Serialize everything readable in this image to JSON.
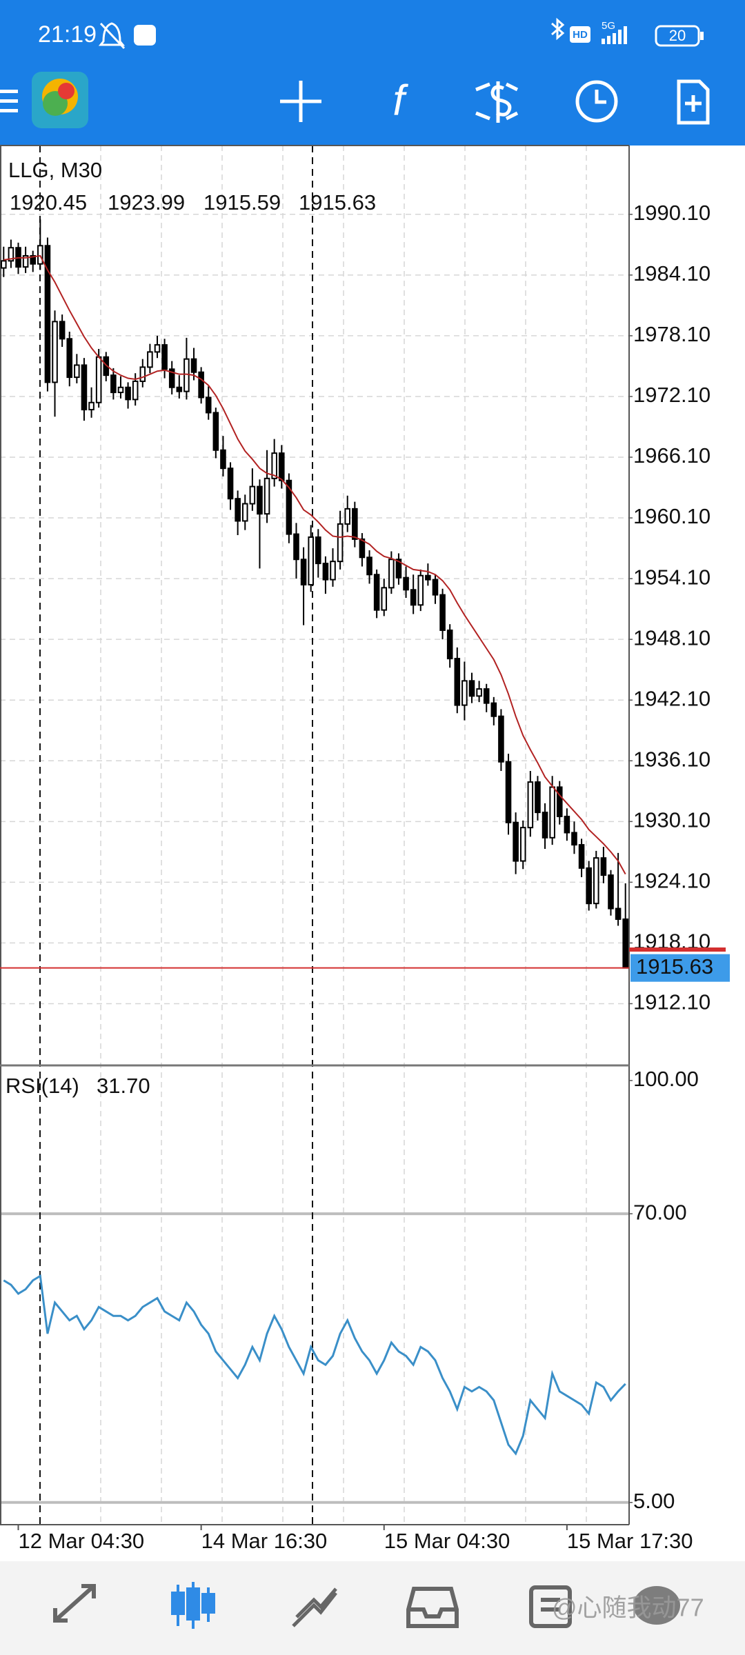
{
  "status_bar": {
    "time": "21:19",
    "hd": "HD",
    "network": "5G",
    "battery": "20"
  },
  "chart_data": [
    {
      "type": "candlestick",
      "title": "LLG, M30",
      "open": [
        1984.8,
        1985.5,
        1986.8,
        1984.9,
        1986.0,
        1985.2,
        1987.0,
        1973.5,
        1979.5,
        1977.8,
        1974.0,
        1975.2,
        1970.8,
        1971.5,
        1976.0,
        1974.2,
        1972.5,
        1973.0,
        1971.8,
        1973.6,
        1975.0,
        1976.5,
        1977.2,
        1974.8,
        1973.0,
        1972.6,
        1975.8,
        1974.5,
        1972.0,
        1970.5,
        1966.8,
        1965.0,
        1962.0,
        1959.8,
        1961.5,
        1963.2,
        1960.5,
        1964.0,
        1966.5,
        1963.8,
        1958.5,
        1956.0,
        1953.5,
        1958.2,
        1955.6,
        1954.0,
        1955.8,
        1959.5,
        1961.0,
        1958.0,
        1956.2,
        1954.5,
        1951.0,
        1953.2,
        1956.0,
        1954.2,
        1953.0,
        1951.5,
        1954.4,
        1954.0,
        1952.5,
        1949.0,
        1946.2,
        1941.6,
        1944.0,
        1942.5,
        1943.2,
        1941.8,
        1940.5,
        1936.0,
        1930.0,
        1926.2,
        1929.5,
        1934.0,
        1931.0,
        1928.5,
        1933.5,
        1930.6,
        1929.0,
        1927.8,
        1925.5,
        1922.0,
        1926.5,
        1924.8,
        1921.5,
        1920.45
      ],
      "high": [
        1986.9,
        1987.6,
        1987.3,
        1986.9,
        1986.5,
        1989.6,
        1987.8,
        1980.6,
        1980.2,
        1978.5,
        1976.3,
        1975.9,
        1973.0,
        1976.8,
        1976.5,
        1974.9,
        1974.1,
        1973.5,
        1974.4,
        1975.8,
        1977.3,
        1978.1,
        1977.8,
        1975.6,
        1974.2,
        1977.9,
        1976.9,
        1975.0,
        1973.1,
        1971.0,
        1968.2,
        1965.6,
        1962.8,
        1962.4,
        1965.0,
        1963.9,
        1966.8,
        1967.9,
        1967.3,
        1964.5,
        1959.6,
        1957.2,
        1959.4,
        1959.0,
        1956.3,
        1957.1,
        1960.8,
        1962.3,
        1961.7,
        1958.6,
        1956.9,
        1955.0,
        1954.1,
        1956.8,
        1956.6,
        1955.3,
        1954.5,
        1955.0,
        1955.6,
        1954.5,
        1953.1,
        1949.6,
        1947.3,
        1945.9,
        1944.8,
        1944.0,
        1943.7,
        1942.4,
        1941.2,
        1936.8,
        1931.0,
        1930.2,
        1935.1,
        1934.6,
        1931.9,
        1934.6,
        1934.1,
        1931.4,
        1930.1,
        1928.4,
        1926.2,
        1927.2,
        1927.6,
        1925.3,
        1927.0,
        1923.99
      ],
      "low": [
        1983.9,
        1984.8,
        1984.2,
        1984.3,
        1984.4,
        1984.6,
        1972.6,
        1970.1,
        1977.0,
        1973.1,
        1973.4,
        1969.7,
        1970.0,
        1971.0,
        1973.6,
        1971.8,
        1971.9,
        1970.9,
        1971.2,
        1973.0,
        1974.4,
        1975.9,
        1973.9,
        1972.3,
        1971.9,
        1971.8,
        1973.7,
        1971.4,
        1969.8,
        1966.0,
        1964.2,
        1960.9,
        1958.4,
        1958.9,
        1960.8,
        1955.1,
        1959.6,
        1963.2,
        1963.0,
        1957.6,
        1954.1,
        1949.5,
        1952.8,
        1954.2,
        1952.6,
        1953.3,
        1955.0,
        1958.7,
        1957.2,
        1955.3,
        1953.6,
        1950.2,
        1950.4,
        1952.6,
        1953.5,
        1952.2,
        1950.6,
        1950.9,
        1953.4,
        1951.6,
        1948.1,
        1945.3,
        1940.8,
        1940.1,
        1941.8,
        1941.9,
        1940.9,
        1939.6,
        1935.1,
        1928.8,
        1924.9,
        1925.4,
        1928.6,
        1930.2,
        1927.4,
        1927.8,
        1929.8,
        1928.2,
        1926.9,
        1924.6,
        1921.3,
        1921.5,
        1924.0,
        1920.8,
        1919.8,
        1915.59
      ],
      "close": [
        1985.5,
        1986.8,
        1984.9,
        1986.0,
        1985.2,
        1987.0,
        1973.5,
        1979.5,
        1977.8,
        1974.0,
        1975.2,
        1970.8,
        1971.5,
        1976.0,
        1974.2,
        1972.5,
        1973.0,
        1971.8,
        1973.6,
        1975.0,
        1976.5,
        1977.2,
        1974.8,
        1973.0,
        1972.6,
        1975.8,
        1974.5,
        1972.0,
        1970.5,
        1966.8,
        1965.0,
        1962.0,
        1959.8,
        1961.5,
        1963.2,
        1960.5,
        1964.0,
        1966.5,
        1963.8,
        1958.5,
        1956.0,
        1953.5,
        1958.2,
        1955.6,
        1954.0,
        1955.8,
        1959.5,
        1961.0,
        1958.0,
        1956.2,
        1954.5,
        1951.0,
        1953.2,
        1956.0,
        1954.2,
        1953.0,
        1951.5,
        1954.4,
        1954.0,
        1952.5,
        1949.0,
        1946.2,
        1941.6,
        1944.0,
        1942.5,
        1943.2,
        1941.8,
        1940.5,
        1936.0,
        1930.0,
        1926.2,
        1929.5,
        1934.0,
        1931.0,
        1928.5,
        1933.5,
        1930.6,
        1929.0,
        1927.8,
        1925.5,
        1922.0,
        1926.5,
        1924.8,
        1921.5,
        1920.45,
        1915.63
      ],
      "ma": {
        "color": "#b22222",
        "values": [
          1985.6,
          1985.7,
          1985.8,
          1985.8,
          1985.9,
          1986.0,
          1984.6,
          1983.4,
          1982.0,
          1980.6,
          1979.3,
          1978.0,
          1976.9,
          1976.0,
          1975.2,
          1974.6,
          1974.2,
          1973.9,
          1973.8,
          1974.0,
          1974.3,
          1974.6,
          1974.7,
          1974.5,
          1974.3,
          1974.3,
          1974.2,
          1973.8,
          1973.2,
          1972.2,
          1970.9,
          1969.4,
          1967.9,
          1966.7,
          1965.9,
          1965.0,
          1964.5,
          1964.3,
          1963.9,
          1963.1,
          1962.1,
          1960.9,
          1960.4,
          1959.7,
          1958.9,
          1958.3,
          1958.2,
          1958.3,
          1958.2,
          1957.9,
          1957.5,
          1956.8,
          1956.3,
          1956.1,
          1955.8,
          1955.4,
          1955.0,
          1954.9,
          1954.8,
          1954.5,
          1953.9,
          1953.0,
          1951.7,
          1950.5,
          1949.4,
          1948.3,
          1947.2,
          1946.1,
          1944.6,
          1942.7,
          1940.5,
          1938.6,
          1937.2,
          1935.9,
          1934.5,
          1933.6,
          1932.7,
          1931.9,
          1931.1,
          1930.3,
          1929.3,
          1928.6,
          1927.9,
          1927.1,
          1926.2,
          1924.9
        ]
      },
      "up_color": "#ffffff",
      "down_color": "#000000",
      "price_line_color": "#d32f2f",
      "price_label_color": "#3d9be9",
      "ylim": [
        1906.0,
        1996.9
      ],
      "yticks": [
        {
          "value": 1990.1,
          "label": "1990.10"
        },
        {
          "value": 1984.1,
          "label": "1984.10"
        },
        {
          "value": 1978.1,
          "label": "1978.10"
        },
        {
          "value": 1972.1,
          "label": "1972.10"
        },
        {
          "value": 1966.1,
          "label": "1966.10"
        },
        {
          "value": 1960.1,
          "label": "1960.10"
        },
        {
          "value": 1954.1,
          "label": "1954.10"
        },
        {
          "value": 1948.1,
          "label": "1948.10"
        },
        {
          "value": 1942.1,
          "label": "1942.10"
        },
        {
          "value": 1936.1,
          "label": "1936.10"
        },
        {
          "value": 1930.1,
          "label": "1930.10"
        },
        {
          "value": 1924.1,
          "label": "1924.10"
        },
        {
          "value": 1918.1,
          "label": "1918.10"
        },
        {
          "value": 1912.1,
          "label": "1912.10"
        }
      ],
      "xticks": [
        {
          "value": 2,
          "label": "12 Mar 04:30"
        },
        {
          "value": 27,
          "label": "14 Mar 16:30"
        },
        {
          "value": 52,
          "label": "15 Mar 04:30"
        },
        {
          "value": 77,
          "label": "15 Mar 17:30"
        }
      ],
      "grid": true
    },
    {
      "type": "line",
      "title": "RSI(14)",
      "current_label": "31.70",
      "color": "#3a8fc8",
      "values": [
        55,
        54,
        52,
        53,
        55,
        56,
        43,
        50,
        48,
        46,
        47,
        44,
        46,
        49,
        48,
        47,
        47,
        46,
        47,
        49,
        50,
        51,
        48,
        47,
        46,
        50,
        48,
        45,
        43,
        39,
        37,
        35,
        33,
        36,
        40,
        37,
        43,
        47,
        44,
        40,
        37,
        34,
        40,
        37,
        36,
        38,
        43,
        46,
        42,
        39,
        37,
        34,
        37,
        41,
        39,
        38,
        36,
        40,
        39,
        37,
        33,
        30,
        26,
        31,
        30,
        31,
        30,
        28,
        23,
        18,
        16,
        20,
        28,
        26,
        24,
        34,
        30,
        29,
        28,
        27,
        25,
        32,
        31,
        28,
        30,
        31.7
      ],
      "ylim": [
        0,
        103.4
      ],
      "yticks": [
        {
          "value": 100,
          "label": "100.00"
        },
        {
          "value": 70,
          "label": "70.00"
        },
        {
          "value": 5,
          "label": "5.00"
        }
      ],
      "levels": [
        70,
        5
      ]
    }
  ],
  "watermark": "@心随我动77"
}
